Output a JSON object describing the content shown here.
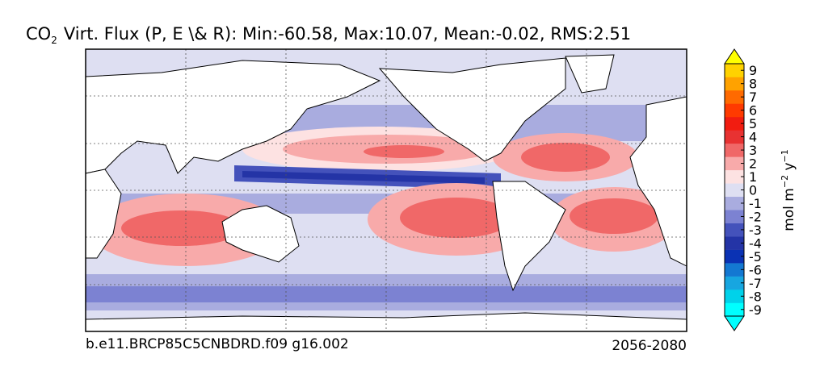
{
  "map": {
    "title": {
      "prefix": "CO",
      "subscript": "2",
      "text": "Virt. Flux (P, E \\& R): Min:-60.58, Max:10.07, Mean:-0.02, RMS:2.51"
    },
    "case_label": "b.e11.BRCP85C5CNBDRD.f09 g16.002",
    "period_label": "2056-2080",
    "colorbar": {
      "units": {
        "base": "mol m",
        "exp1": "−2",
        "mid": " y",
        "exp2": "−1"
      },
      "ticks": [
        -9,
        -8,
        -7,
        -6,
        -5,
        -4,
        -3,
        -2,
        -1,
        0,
        1,
        2,
        3,
        4,
        5,
        6,
        7,
        8,
        9
      ],
      "colors": [
        "#00ffff",
        "#00d2ea",
        "#17a6e0",
        "#1378d2",
        "#0a32b4",
        "#2434a6",
        "#4452bb",
        "#7c82d2",
        "#a9acdf",
        "#dedff2",
        "#fde2e2",
        "#f8aaaa",
        "#f06868",
        "#e83232",
        "#f21c10",
        "#ff3a00",
        "#ff6a00",
        "#ffa200",
        "#ffd200"
      ],
      "under_color": "#00ffff",
      "over_color": "#ffff00"
    }
  }
}
